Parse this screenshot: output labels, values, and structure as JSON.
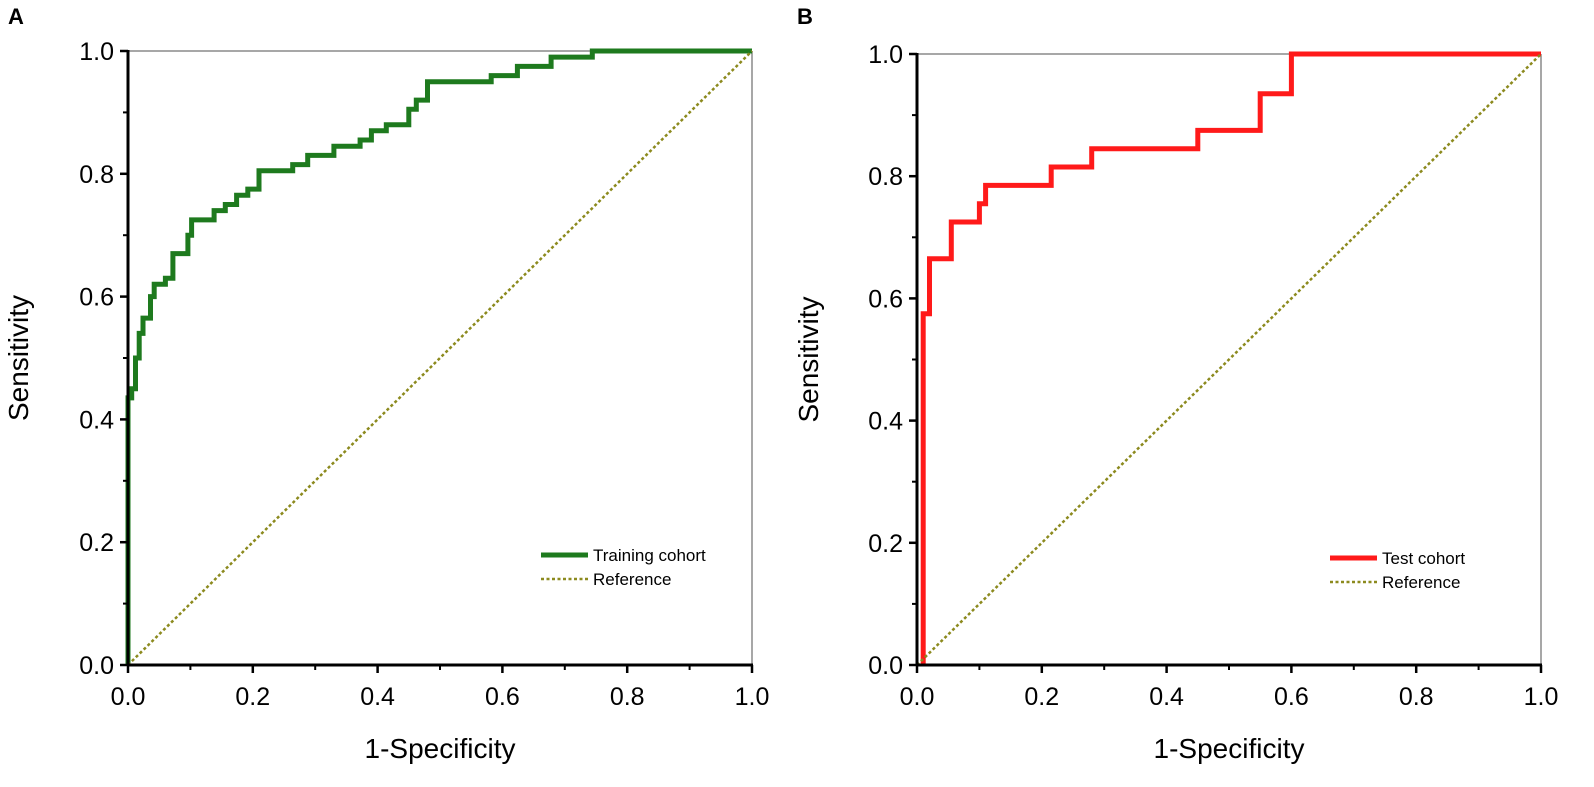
{
  "chart_data": [
    {
      "panel_label": "A",
      "type": "line",
      "xlabel": "1-Specificity",
      "ylabel": "Sensitivity",
      "xlim": [
        0,
        1
      ],
      "ylim": [
        0,
        1
      ],
      "xticks": [
        "0.0",
        "0.2",
        "0.4",
        "0.6",
        "0.8",
        "1.0"
      ],
      "yticks": [
        "0.0",
        "0.2",
        "0.4",
        "0.6",
        "0.8",
        "1.0"
      ],
      "legend_position": "bottom-right",
      "series": [
        {
          "name": "Training cohort",
          "style": "solid",
          "color": "#1e7a1e",
          "x": [
            0,
            0,
            0.006,
            0.006,
            0.012,
            0.012,
            0.018,
            0.018,
            0.024,
            0.024,
            0.036,
            0.036,
            0.042,
            0.042,
            0.06,
            0.06,
            0.072,
            0.072,
            0.096,
            0.096,
            0.102,
            0.102,
            0.138,
            0.138,
            0.156,
            0.156,
            0.174,
            0.174,
            0.192,
            0.192,
            0.21,
            0.21,
            0.264,
            0.264,
            0.288,
            0.288,
            0.33,
            0.33,
            0.372,
            0.372,
            0.39,
            0.39,
            0.414,
            0.414,
            0.45,
            0.45,
            0.462,
            0.462,
            0.48,
            0.48,
            0.582,
            0.582,
            0.624,
            0.624,
            0.678,
            0.678,
            0.744,
            0.744,
            1.0
          ],
          "y": [
            0,
            0.435,
            0.435,
            0.45,
            0.45,
            0.5,
            0.5,
            0.54,
            0.54,
            0.565,
            0.565,
            0.6,
            0.6,
            0.62,
            0.62,
            0.63,
            0.63,
            0.67,
            0.67,
            0.7,
            0.7,
            0.725,
            0.725,
            0.74,
            0.74,
            0.75,
            0.75,
            0.765,
            0.765,
            0.775,
            0.775,
            0.805,
            0.805,
            0.815,
            0.815,
            0.83,
            0.83,
            0.845,
            0.845,
            0.855,
            0.855,
            0.87,
            0.87,
            0.88,
            0.88,
            0.905,
            0.905,
            0.92,
            0.92,
            0.95,
            0.95,
            0.96,
            0.96,
            0.975,
            0.975,
            0.99,
            0.99,
            1.0,
            1.0
          ]
        },
        {
          "name": "Reference",
          "style": "dotted",
          "color": "#8c8a1e",
          "x": [
            0,
            1
          ],
          "y": [
            0,
            1
          ]
        }
      ]
    },
    {
      "panel_label": "B",
      "type": "line",
      "xlabel": "1-Specificity",
      "ylabel": "Sensitivity",
      "xlim": [
        0,
        1
      ],
      "ylim": [
        0,
        1
      ],
      "xticks": [
        "0.0",
        "0.2",
        "0.4",
        "0.6",
        "0.8",
        "1.0"
      ],
      "yticks": [
        "0.0",
        "0.2",
        "0.4",
        "0.6",
        "0.8",
        "1.0"
      ],
      "legend_position": "bottom-right",
      "series": [
        {
          "name": "Test cohort",
          "style": "solid",
          "color": "#ff1a1a",
          "x": [
            0.01,
            0.01,
            0.02,
            0.02,
            0.055,
            0.055,
            0.1,
            0.1,
            0.11,
            0.11,
            0.215,
            0.215,
            0.28,
            0.28,
            0.45,
            0.45,
            0.55,
            0.55,
            0.6,
            0.6,
            1.0
          ],
          "y": [
            0,
            0.575,
            0.575,
            0.665,
            0.665,
            0.725,
            0.725,
            0.755,
            0.755,
            0.785,
            0.785,
            0.815,
            0.815,
            0.845,
            0.845,
            0.875,
            0.875,
            0.935,
            0.935,
            1.0,
            1.0
          ]
        },
        {
          "name": "Reference",
          "style": "dotted",
          "color": "#8c8a1e",
          "x": [
            0,
            1
          ],
          "y": [
            0,
            1
          ]
        }
      ]
    }
  ]
}
